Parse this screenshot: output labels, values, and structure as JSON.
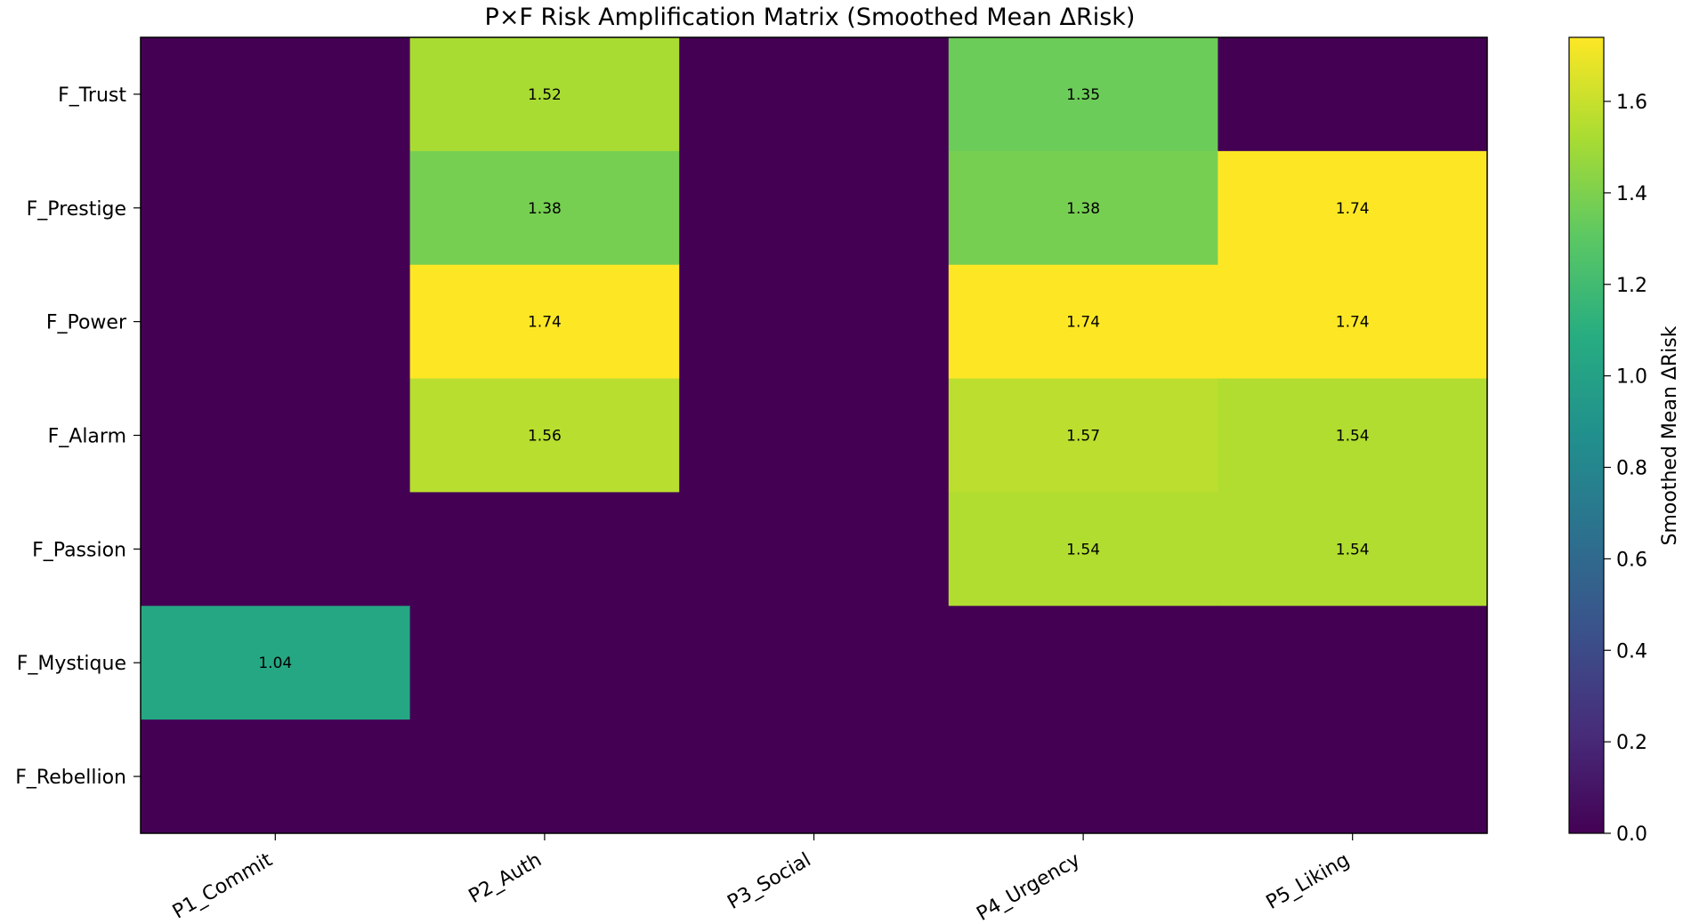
{
  "chart_data": {
    "type": "heatmap",
    "title": "P×F Risk Amplification Matrix (Smoothed Mean ΔRisk)",
    "x_categories": [
      "P1_Commit",
      "P2_Auth",
      "P3_Social",
      "P4_Urgency",
      "P5_Liking"
    ],
    "y_categories": [
      "F_Trust",
      "F_Prestige",
      "F_Power",
      "F_Alarm",
      "F_Passion",
      "F_Mystique",
      "F_Rebellion"
    ],
    "values": [
      [
        0,
        1.52,
        0,
        1.35,
        0
      ],
      [
        0,
        1.38,
        0,
        1.38,
        1.74
      ],
      [
        0,
        1.74,
        0,
        1.74,
        1.74
      ],
      [
        0,
        1.56,
        0,
        1.57,
        1.54
      ],
      [
        0,
        0,
        0,
        1.54,
        1.54
      ],
      [
        1.04,
        0,
        0,
        0,
        0
      ],
      [
        0,
        0,
        0,
        0,
        0
      ]
    ],
    "cell_labels": [
      [
        "",
        "1.52",
        "",
        "1.35",
        ""
      ],
      [
        "",
        "1.38",
        "",
        "1.38",
        "1.74"
      ],
      [
        "",
        "1.74",
        "",
        "1.74",
        "1.74"
      ],
      [
        "",
        "1.56",
        "",
        "1.57",
        "1.54"
      ],
      [
        "",
        "",
        "",
        "1.54",
        "1.54"
      ],
      [
        "1.04",
        "",
        "",
        "",
        ""
      ],
      [
        "",
        "",
        "",
        "",
        ""
      ]
    ],
    "colormap": "viridis",
    "colorbar": {
      "label": "Smoothed Mean ΔRisk",
      "range": [
        0.0,
        1.74
      ],
      "ticks": [
        0.0,
        0.2,
        0.4,
        0.6,
        0.8,
        1.0,
        1.2,
        1.4,
        1.6
      ],
      "tick_labels": [
        "0.0",
        "0.2",
        "0.4",
        "0.6",
        "0.8",
        "1.0",
        "1.2",
        "1.4",
        "1.6"
      ]
    },
    "x_tick_rotation": "30 degrees",
    "grid": false
  }
}
